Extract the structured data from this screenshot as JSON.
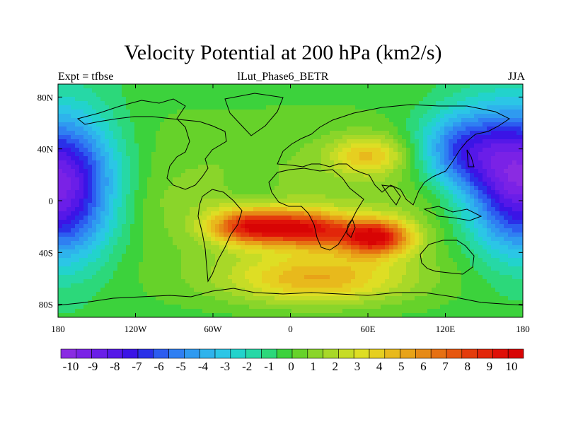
{
  "title": "Velocity Potential at 200 hPa (km2/s)",
  "subtitle_left": "Expt = tfbse",
  "subtitle_center": "lLut_Phase6_BETR",
  "subtitle_right": "JJA",
  "map": {
    "projection": "cylindrical-equidistant",
    "lon_range": [
      -180,
      180
    ],
    "lat_range": [
      -90,
      90
    ],
    "x_ticks": [
      {
        "lon": -180,
        "label": "180"
      },
      {
        "lon": -120,
        "label": "120W"
      },
      {
        "lon": -60,
        "label": "60W"
      },
      {
        "lon": 0,
        "label": "0"
      },
      {
        "lon": 60,
        "label": "60E"
      },
      {
        "lon": 120,
        "label": "120E"
      },
      {
        "lon": 180,
        "label": "180"
      }
    ],
    "y_ticks": [
      {
        "lat": 80,
        "label": "80N"
      },
      {
        "lat": 40,
        "label": "40N"
      },
      {
        "lat": 0,
        "label": "0"
      },
      {
        "lat": -40,
        "label": "40S"
      },
      {
        "lat": -80,
        "label": "80S"
      }
    ],
    "field_centers": [
      {
        "lon": -180,
        "lat": 10,
        "value": -11,
        "spread_lon": 45,
        "spread_lat": 55
      },
      {
        "lon": 180,
        "lat": 15,
        "value": -11,
        "spread_lon": 45,
        "spread_lat": 55
      },
      {
        "lon": 130,
        "lat": 40,
        "value": -5,
        "spread_lon": 35,
        "spread_lat": 30
      },
      {
        "lon": -30,
        "lat": 5,
        "value": -1,
        "spread_lon": 20,
        "spread_lat": 15
      },
      {
        "lon": -30,
        "lat": -20,
        "value": 9,
        "spread_lon": 32,
        "spread_lat": 14
      },
      {
        "lon": 15,
        "lat": -22,
        "value": 8,
        "spread_lon": 30,
        "spread_lat": 14
      },
      {
        "lon": 65,
        "lat": -28,
        "value": 10,
        "spread_lon": 28,
        "spread_lat": 14
      },
      {
        "lon": 60,
        "lat": 35,
        "value": 4,
        "spread_lon": 30,
        "spread_lat": 15
      },
      {
        "lon": 20,
        "lat": -60,
        "value": 5,
        "spread_lon": 70,
        "spread_lat": 20
      }
    ]
  },
  "colorbar": {
    "levels": [
      "-10",
      "-9",
      "-8",
      "-7",
      "-6",
      "-5",
      "-4",
      "-3",
      "-2",
      "-1",
      "0",
      "1",
      "2",
      "3",
      "4",
      "5",
      "6",
      "7",
      "8",
      "9",
      "10"
    ],
    "colors": [
      "#8a2be2",
      "#7a22e6",
      "#6a1ee8",
      "#5518e8",
      "#3b14e6",
      "#2a30e8",
      "#2c5cf0",
      "#2f7ff2",
      "#2f9af0",
      "#2eb3ec",
      "#2bc6e6",
      "#22d3cc",
      "#26d8a6",
      "#2cd87a",
      "#3cd23c",
      "#66d22a",
      "#8ad52a",
      "#a8d828",
      "#c6dc26",
      "#dede24",
      "#e6cf20",
      "#e8b91c",
      "#e8a318",
      "#e68a16",
      "#e67012",
      "#e6560e",
      "#e43c0c",
      "#e2260a",
      "#df1008",
      "#d80404"
    ]
  }
}
